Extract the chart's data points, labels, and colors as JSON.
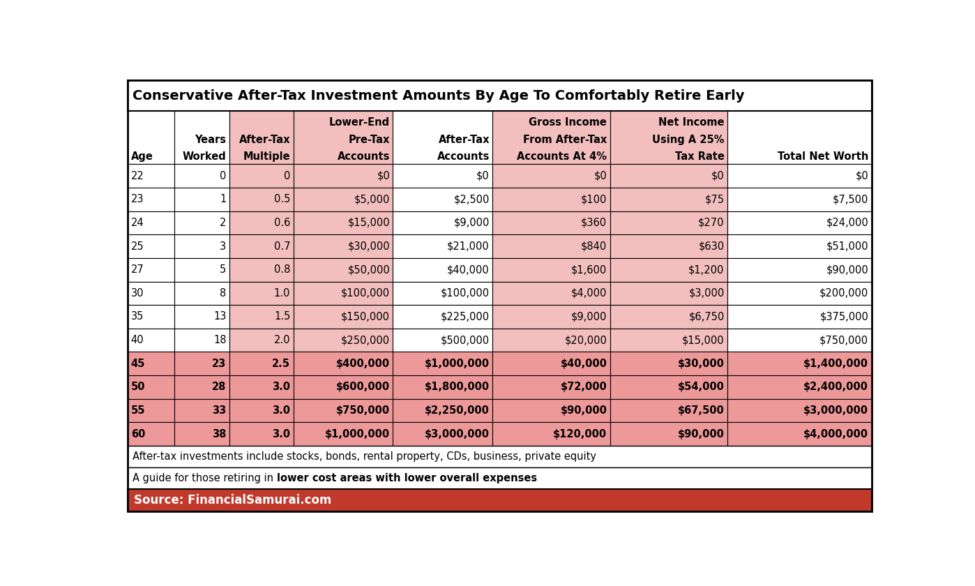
{
  "title": "Conservative After-Tax Investment Amounts By Age To Comfortably Retire Early",
  "col_headers_line1": [
    "",
    "",
    "",
    "Lower-End",
    "",
    "Gross Income",
    "Net Income",
    ""
  ],
  "col_headers_line2": [
    "",
    "Years",
    "After-Tax",
    "Pre-Tax",
    "After-Tax",
    "From After-Tax",
    "Using A 25%",
    ""
  ],
  "col_headers_line3": [
    "Age",
    "Worked",
    "Multiple",
    "Accounts",
    "Accounts",
    "Accounts At 4%",
    "Tax Rate",
    "Total Net Worth"
  ],
  "rows": [
    [
      "22",
      "0",
      "0",
      "$0",
      "$0",
      "$0",
      "$0",
      "$0"
    ],
    [
      "23",
      "1",
      "0.5",
      "$5,000",
      "$2,500",
      "$100",
      "$75",
      "$7,500"
    ],
    [
      "24",
      "2",
      "0.6",
      "$15,000",
      "$9,000",
      "$360",
      "$270",
      "$24,000"
    ],
    [
      "25",
      "3",
      "0.7",
      "$30,000",
      "$21,000",
      "$840",
      "$630",
      "$51,000"
    ],
    [
      "27",
      "5",
      "0.8",
      "$50,000",
      "$40,000",
      "$1,600",
      "$1,200",
      "$90,000"
    ],
    [
      "30",
      "8",
      "1.0",
      "$100,000",
      "$100,000",
      "$4,000",
      "$3,000",
      "$200,000"
    ],
    [
      "35",
      "13",
      "1.5",
      "$150,000",
      "$225,000",
      "$9,000",
      "$6,750",
      "$375,000"
    ],
    [
      "40",
      "18",
      "2.0",
      "$250,000",
      "$500,000",
      "$20,000",
      "$15,000",
      "$750,000"
    ],
    [
      "45",
      "23",
      "2.5",
      "$400,000",
      "$1,000,000",
      "$40,000",
      "$30,000",
      "$1,400,000"
    ],
    [
      "50",
      "28",
      "3.0",
      "$600,000",
      "$1,800,000",
      "$72,000",
      "$54,000",
      "$2,400,000"
    ],
    [
      "55",
      "33",
      "3.0",
      "$750,000",
      "$2,250,000",
      "$90,000",
      "$67,500",
      "$3,000,000"
    ],
    [
      "60",
      "38",
      "3.0",
      "$1,000,000",
      "$3,000,000",
      "$120,000",
      "$90,000",
      "$4,000,000"
    ]
  ],
  "bold_rows": [
    8,
    9,
    10,
    11
  ],
  "bold_cell_special": [
    [
      9,
      7
    ]
  ],
  "header_bg_cols": [
    2,
    3,
    5,
    6
  ],
  "row_bg_dark": [
    8,
    9,
    10,
    11
  ],
  "light_pink": "#F2BEBE",
  "dark_pink": "#EE9999",
  "footer_note1": "After-tax investments include stocks, bonds, rental property, CDs, business, private equity",
  "footer_note2_plain": "A guide for those retiring in ",
  "footer_note2_bold": "lower cost areas with lower overall expenses",
  "source_text": "Source: FinancialSamurai.com",
  "source_bg": "#C0392B",
  "source_text_color": "#FFFFFF",
  "border_color": "#000000",
  "title_fontsize": 14,
  "header_fontsize": 10.5,
  "cell_fontsize": 10.5,
  "footer_fontsize": 10.5,
  "source_fontsize": 12
}
